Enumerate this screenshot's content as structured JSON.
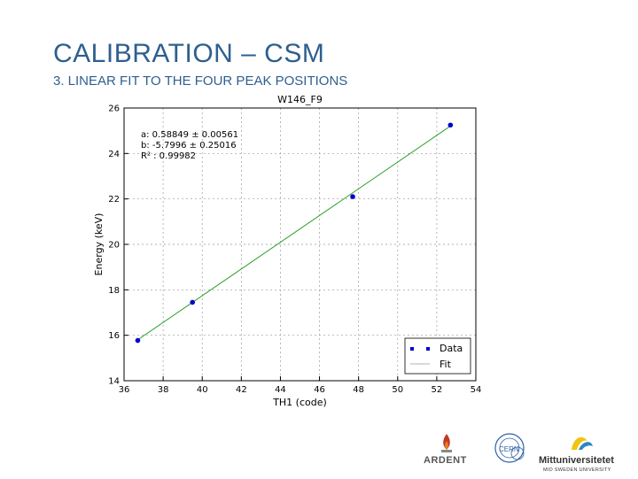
{
  "slide": {
    "title": "CALIBRATION – CSM",
    "subtitle": "3. LINEAR FIT TO THE FOUR PEAK POSITIONS"
  },
  "logos": {
    "ardent": "ARDENT",
    "cern": "CERN",
    "miun": "Mittuniversitetet",
    "miun_sub": "MID SWEDEN UNIVERSITY"
  },
  "colors": {
    "title": "#2e5f8f",
    "data_points": "#0000cc",
    "fit_line": "#2ca02c"
  },
  "chart_data": {
    "type": "scatter",
    "title": "W146_F9",
    "xlabel": "TH1 (code)",
    "ylabel": "Energy (keV)",
    "xlim": [
      36,
      54
    ],
    "ylim": [
      14,
      26
    ],
    "xticks": [
      36,
      38,
      40,
      42,
      44,
      46,
      48,
      50,
      52,
      54
    ],
    "yticks": [
      14,
      16,
      18,
      20,
      22,
      24,
      26
    ],
    "grid": true,
    "legend_position": "bottom-right",
    "annotations": [
      "a: 0.58849 ± 0.00561",
      "b: -5.7996 ± 0.25016",
      "R² : 0.99982"
    ],
    "series": [
      {
        "name": "Data",
        "kind": "points",
        "x": [
          36.7,
          39.5,
          47.7,
          52.7
        ],
        "y": [
          15.77,
          17.45,
          22.1,
          25.25
        ]
      },
      {
        "name": "Fit",
        "kind": "line",
        "x": [
          36.7,
          52.7
        ],
        "y": [
          15.8,
          25.21
        ]
      }
    ]
  }
}
